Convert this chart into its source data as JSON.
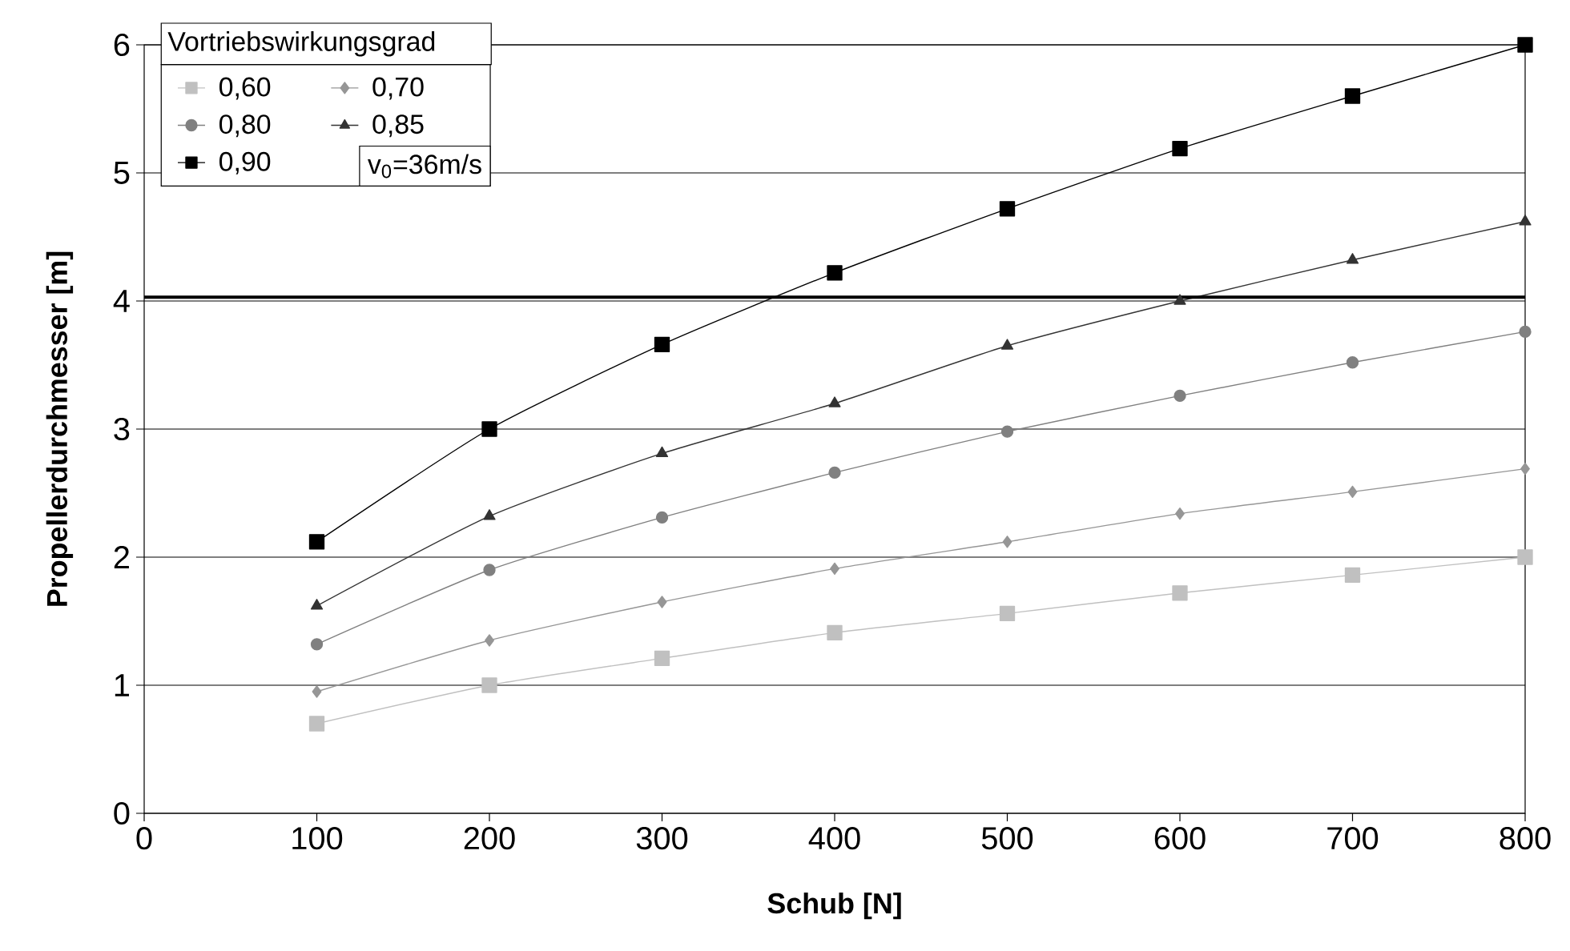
{
  "chart_data": {
    "type": "line",
    "xlabel": "Schub [N]",
    "ylabel": "Propellerdurchmesser [m]",
    "legend_title": "Vortriebswirkungsgrad",
    "annotations": [
      "v$_{0}$=36m/s"
    ],
    "x": [
      100,
      200,
      300,
      400,
      500,
      600,
      700,
      800
    ],
    "series": [
      {
        "name": "0,60",
        "color": "#c0c0c0",
        "marker": "square",
        "values": [
          0.7,
          1.0,
          1.21,
          1.41,
          1.56,
          1.72,
          1.86,
          2.0
        ]
      },
      {
        "name": "0,70",
        "color": "#969696",
        "marker": "diamond",
        "values": [
          0.95,
          1.35,
          1.65,
          1.91,
          2.12,
          2.34,
          2.51,
          2.69
        ]
      },
      {
        "name": "0,80",
        "color": "#808080",
        "marker": "circle",
        "values": [
          1.32,
          1.9,
          2.31,
          2.66,
          2.98,
          3.26,
          3.52,
          3.76
        ]
      },
      {
        "name": "0,85",
        "color": "#333333",
        "marker": "triangle",
        "values": [
          1.62,
          2.32,
          2.81,
          3.2,
          3.65,
          4.0,
          4.32,
          4.62
        ]
      },
      {
        "name": "0,90",
        "color": "#000000",
        "marker": "square",
        "values": [
          2.12,
          3.0,
          3.66,
          4.22,
          4.72,
          5.19,
          5.6,
          6.0
        ]
      }
    ],
    "xlim": [
      0,
      800
    ],
    "ylim": [
      0,
      6
    ],
    "xticks": [
      0,
      100,
      200,
      300,
      400,
      500,
      600,
      700,
      800
    ],
    "yticks": [
      0,
      1,
      2,
      3,
      4,
      5,
      6
    ],
    "ref_lines": [
      {
        "axis": "y",
        "value": 4.03,
        "color": "#000000"
      }
    ],
    "grid": "y",
    "legend": "top left",
    "line_style": "solid"
  }
}
